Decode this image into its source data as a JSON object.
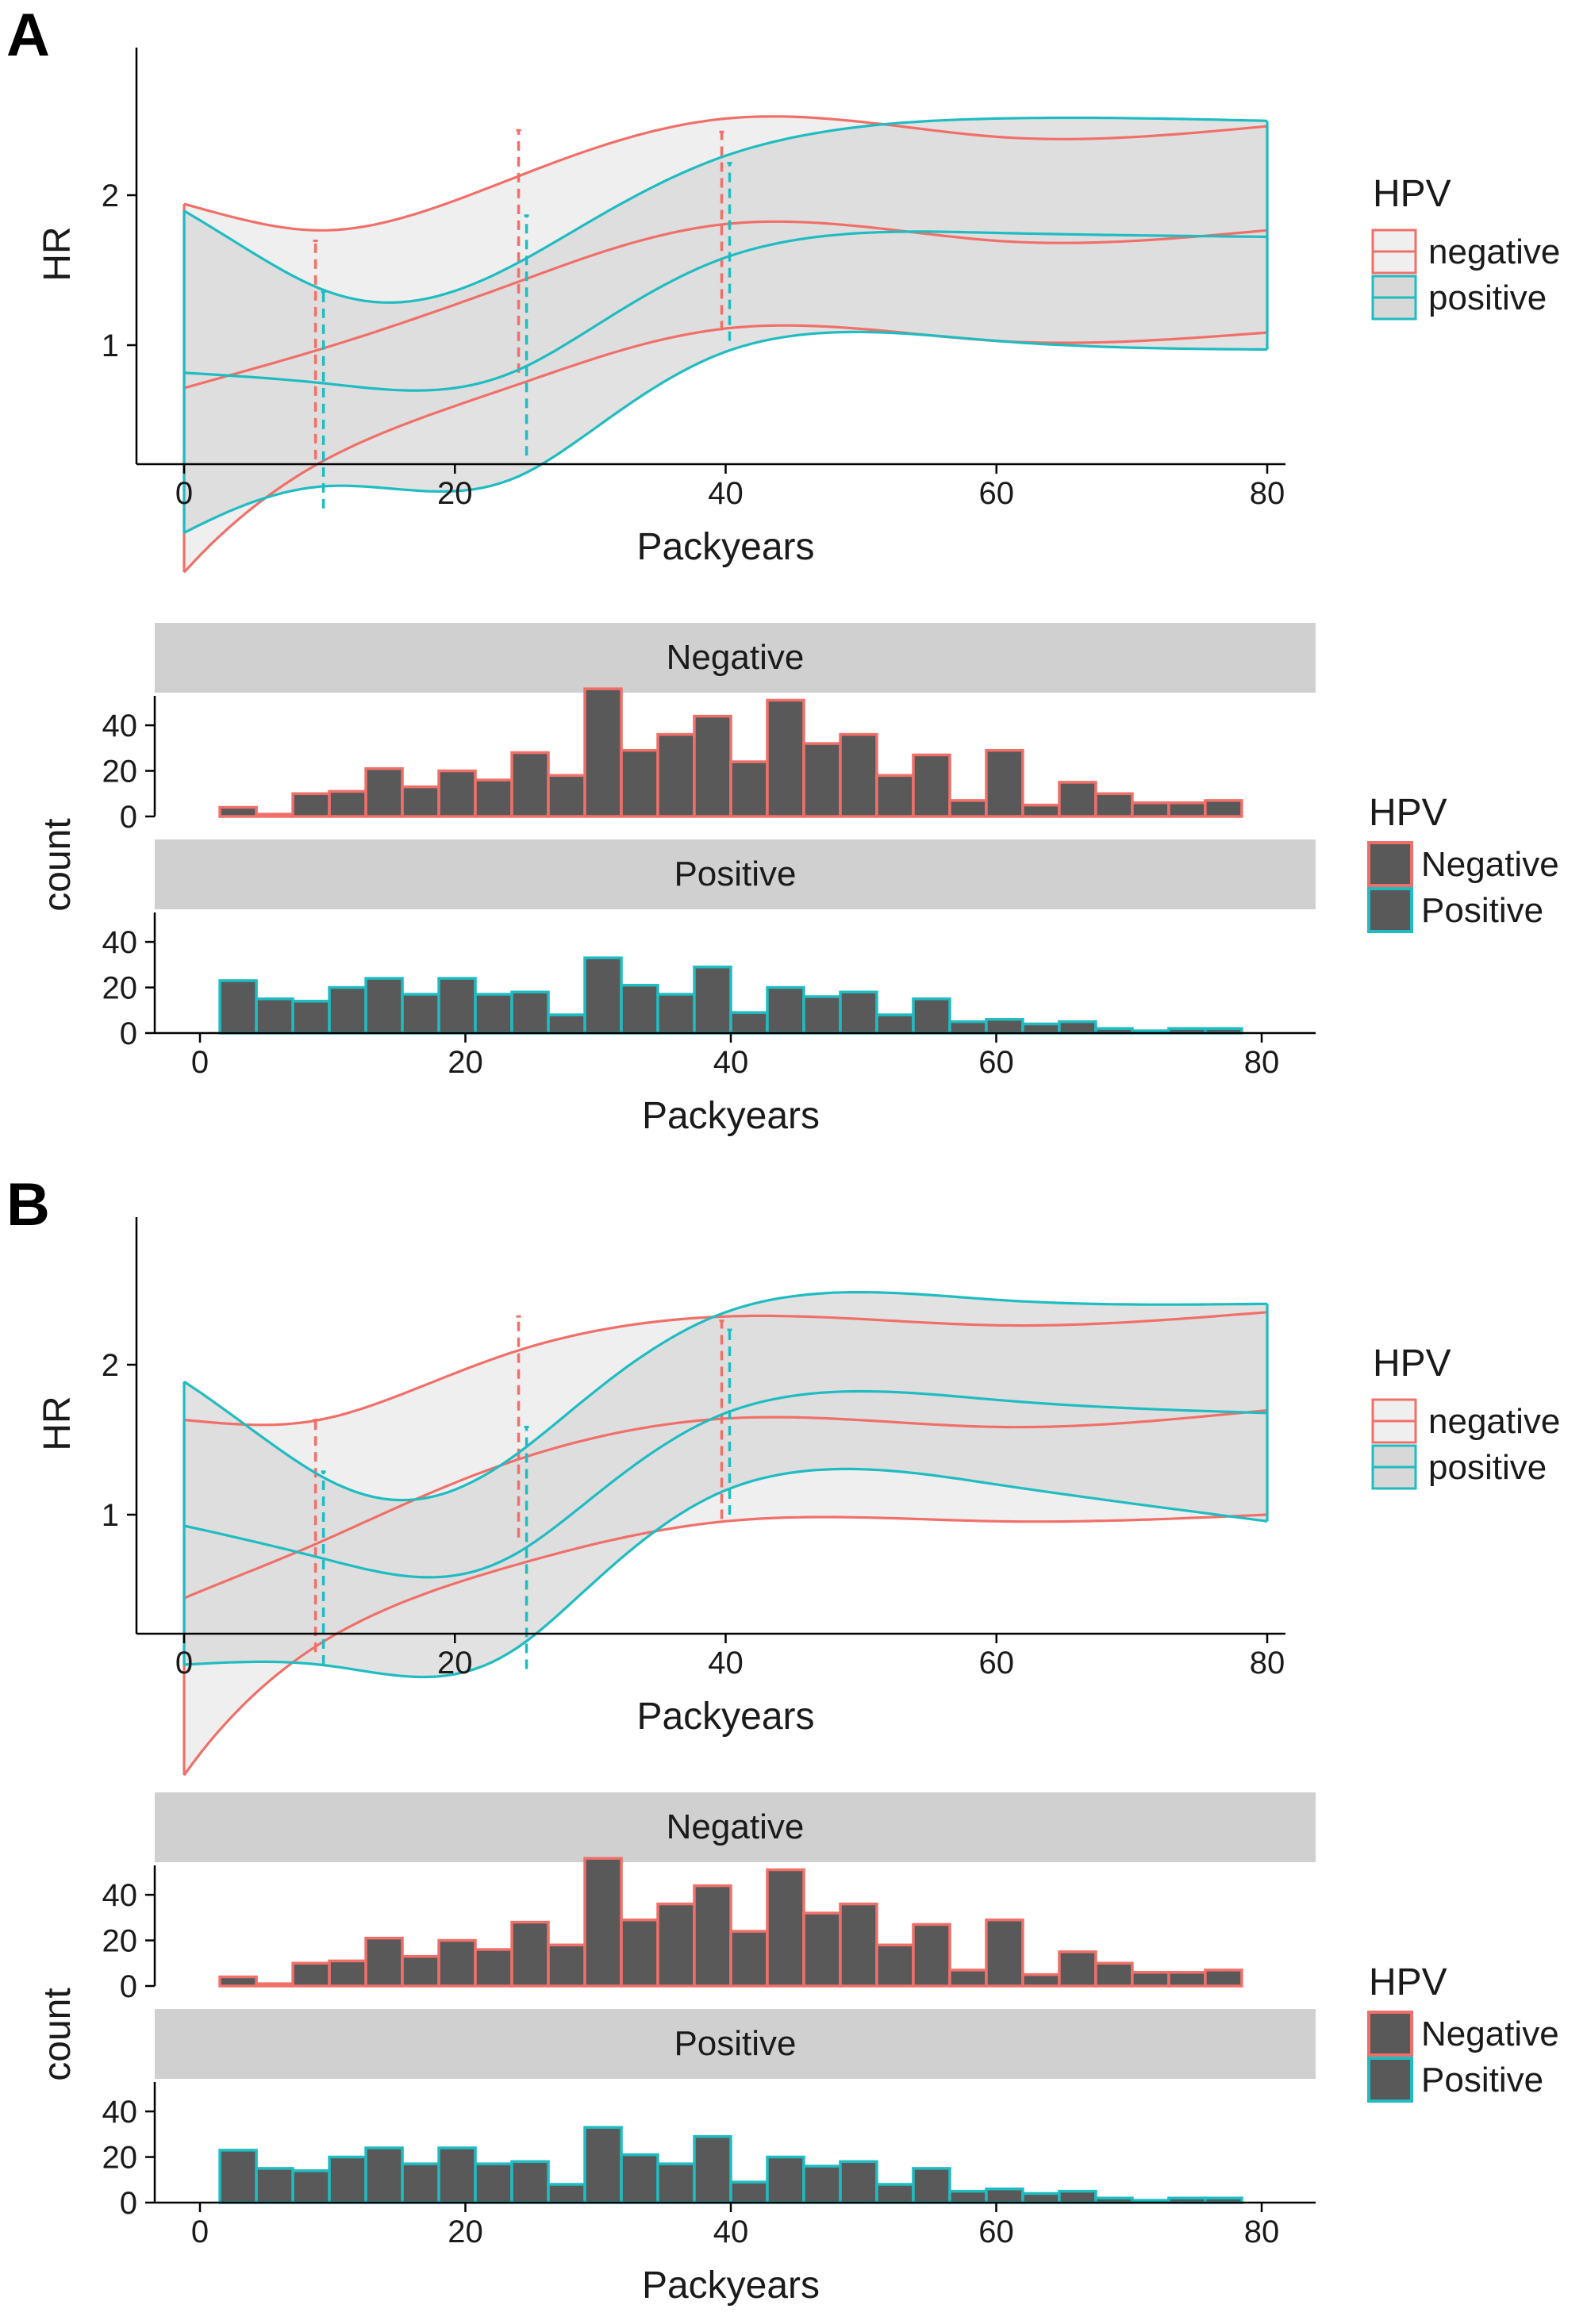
{
  "panels": [
    {
      "letter": "A",
      "hr_chart": {
        "type": "line",
        "xlabel": "Packyears",
        "ylabel": "HR",
        "xlim": [
          0,
          80
        ],
        "xticks": [
          0,
          20,
          40,
          60,
          80
        ],
        "yscale": "log",
        "yticks": [
          1,
          2
        ],
        "legend": {
          "title": "HPV",
          "placement": "right",
          "entries": [
            "negative",
            "positive"
          ]
        },
        "series": [
          {
            "name": "negative",
            "x": [
              0,
              10,
              25,
              40,
              60,
              80
            ],
            "estimate": [
              0.82,
              0.98,
              1.35,
              1.75,
              1.62,
              1.7
            ],
            "lower": [
              0.35,
              0.58,
              0.84,
              1.08,
              1.02,
              1.06
            ],
            "upper": [
              1.92,
              1.7,
              2.2,
              2.85,
              2.62,
              2.75
            ],
            "ci_bars": [
              {
                "x": 10,
                "low": 0.59,
                "high": 1.62
              },
              {
                "x": 25,
                "low": 0.88,
                "high": 2.7
              },
              {
                "x": 40,
                "low": 1.07,
                "high": 2.68
              }
            ]
          },
          {
            "name": "positive",
            "x": [
              0,
              10,
              25,
              40,
              60,
              80
            ],
            "estimate": [
              0.88,
              0.84,
              0.9,
              1.5,
              1.68,
              1.65
            ],
            "lower": [
              0.42,
              0.52,
              0.55,
              0.97,
              1.02,
              0.98
            ],
            "upper": [
              1.86,
              1.3,
              1.48,
              2.4,
              2.85,
              2.82
            ],
            "ci_bars": [
              {
                "x": 10,
                "low": 0.47,
                "high": 1.28
              },
              {
                "x": 25,
                "low": 0.6,
                "high": 1.82
              },
              {
                "x": 40,
                "low": 1.02,
                "high": 2.32
              }
            ]
          }
        ]
      },
      "histogram": {
        "type": "bar",
        "xlabel": "Packyears",
        "ylabel": "count",
        "xlim": [
          0,
          80
        ],
        "xticks": [
          0,
          20,
          40,
          60,
          80
        ],
        "ylim": [
          0,
          55
        ],
        "yticks": [
          0,
          20,
          40
        ],
        "legend": {
          "title": "HPV",
          "placement": "right",
          "entries": [
            "Negative",
            "Positive"
          ]
        },
        "facets": [
          {
            "label": "Negative",
            "name": "Negative",
            "values": [
              4,
              1,
              10,
              11,
              21,
              13,
              20,
              16,
              28,
              18,
              56,
              29,
              36,
              44,
              24,
              51,
              32,
              36,
              18,
              27,
              7,
              29,
              5,
              15,
              10,
              6,
              6,
              7
            ]
          },
          {
            "label": "Positive",
            "name": "Positive",
            "values": [
              23,
              15,
              14,
              20,
              24,
              17,
              24,
              17,
              18,
              8,
              33,
              21,
              17,
              29,
              9,
              20,
              16,
              18,
              8,
              15,
              5,
              6,
              4,
              5,
              2,
              1,
              2,
              2
            ]
          }
        ],
        "bins": {
          "start": 1.5,
          "width": 2.75
        }
      }
    },
    {
      "letter": "B",
      "hr_chart": {
        "type": "line",
        "xlabel": "Packyears",
        "ylabel": "HR",
        "xlim": [
          0,
          80
        ],
        "xticks": [
          0,
          20,
          40,
          60,
          80
        ],
        "yscale": "log",
        "yticks": [
          1,
          2
        ],
        "legend": {
          "title": "HPV",
          "placement": "right",
          "entries": [
            "negative",
            "positive"
          ]
        },
        "series": [
          {
            "name": "negative",
            "x": [
              0,
              10,
              25,
              40,
              60,
              80
            ],
            "estimate": [
              0.68,
              0.88,
              1.3,
              1.56,
              1.5,
              1.62
            ],
            "lower": [
              0.3,
              0.55,
              0.8,
              0.97,
              0.97,
              1.0
            ],
            "upper": [
              1.55,
              1.55,
              2.15,
              2.5,
              2.4,
              2.55
            ],
            "ci_bars": [
              {
                "x": 10,
                "low": 0.53,
                "high": 1.55
              },
              {
                "x": 25,
                "low": 0.9,
                "high": 2.5
              },
              {
                "x": 40,
                "low": 0.98,
                "high": 2.45
              }
            ]
          },
          {
            "name": "positive",
            "x": [
              0,
              10,
              25,
              40,
              60,
              80
            ],
            "estimate": [
              0.95,
              0.82,
              0.85,
              1.6,
              1.7,
              1.6
            ],
            "lower": [
              0.5,
              0.5,
              0.55,
              1.12,
              1.15,
              0.97
            ],
            "upper": [
              1.85,
              1.2,
              1.35,
              2.55,
              2.7,
              2.65
            ],
            "ci_bars": [
              {
                "x": 10,
                "low": 0.5,
                "high": 1.22
              },
              {
                "x": 25,
                "low": 0.49,
                "high": 1.5
              },
              {
                "x": 40,
                "low": 1.0,
                "high": 2.35
              }
            ]
          }
        ]
      },
      "histogram": {
        "type": "bar",
        "xlabel": "Packyears",
        "ylabel": "count",
        "xlim": [
          0,
          80
        ],
        "xticks": [
          0,
          20,
          40,
          60,
          80
        ],
        "ylim": [
          0,
          55
        ],
        "yticks": [
          0,
          20,
          40
        ],
        "legend": {
          "title": "HPV",
          "placement": "right",
          "entries": [
            "Negative",
            "Positive"
          ]
        },
        "facets": [
          {
            "label": "Negative",
            "name": "Negative",
            "values": [
              4,
              1,
              10,
              11,
              21,
              13,
              20,
              16,
              28,
              18,
              56,
              29,
              36,
              44,
              24,
              51,
              32,
              36,
              18,
              27,
              7,
              29,
              5,
              15,
              10,
              6,
              6,
              7
            ]
          },
          {
            "label": "Positive",
            "name": "Positive",
            "values": [
              23,
              15,
              14,
              20,
              24,
              17,
              24,
              17,
              18,
              8,
              33,
              21,
              17,
              29,
              9,
              20,
              16,
              18,
              8,
              15,
              5,
              6,
              4,
              5,
              2,
              1,
              2,
              2
            ]
          }
        ],
        "bins": {
          "start": 1.5,
          "width": 2.75
        }
      }
    }
  ],
  "colors": {
    "negative": "#f07069",
    "positive": "#1fbcc2",
    "bar_fill": "#595959",
    "band_outer": "#efefef",
    "band_inner": "#d8d8d8",
    "strip": "#d0d0d0",
    "axis": "#000000",
    "text": "#1a1a1a"
  }
}
